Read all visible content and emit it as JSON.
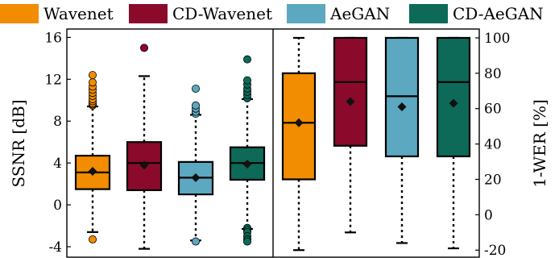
{
  "chart_data": {
    "type": "box",
    "legend": [
      {
        "name": "Wavenet",
        "color": "#F28C00"
      },
      {
        "name": "CD-Wavenet",
        "color": "#8B0A2C"
      },
      {
        "name": "AeGAN",
        "color": "#5BA8C0"
      },
      {
        "name": "CD-AeGAN",
        "color": "#0D6A58"
      }
    ],
    "legend_position": "top",
    "left_panel": {
      "ylabel": "SSNR [dB]",
      "ylim": [
        -5,
        16.8
      ],
      "yticks": [
        -4,
        0,
        4,
        8,
        12,
        16
      ],
      "boxes": [
        {
          "series": "Wavenet",
          "min": -2.6,
          "q1": 1.5,
          "median": 3.1,
          "q3": 4.7,
          "max": 9.4,
          "mean": 3.2,
          "outliers": [
            -3.3,
            9.5,
            9.6,
            9.7,
            9.9,
            10.1,
            10.4,
            10.7,
            11.0,
            11.3,
            11.7,
            12.4
          ]
        },
        {
          "series": "CD-Wavenet",
          "min": -4.2,
          "q1": 1.4,
          "median": 4.0,
          "q3": 6.0,
          "max": 12.3,
          "mean": 3.8,
          "outliers": [
            15.0
          ]
        },
        {
          "series": "AeGAN",
          "min": -3.4,
          "q1": 1.0,
          "median": 2.6,
          "q3": 4.1,
          "max": 8.6,
          "mean": 2.6,
          "outliers": [
            -3.5,
            8.7,
            8.9,
            9.2,
            9.5,
            11.1
          ]
        },
        {
          "series": "CD-AeGAN",
          "min": -2.3,
          "q1": 2.4,
          "median": 4.0,
          "q3": 5.5,
          "max": 10.1,
          "mean": 3.9,
          "outliers": [
            -2.2,
            -2.4,
            -2.6,
            -3.0,
            -3.3,
            -3.5,
            10.2,
            10.5,
            10.8,
            11.1,
            11.5,
            11.9,
            13.9
          ]
        }
      ]
    },
    "right_panel": {
      "ylabel": "1-WER [%]",
      "ylim": [
        -24,
        105
      ],
      "yticks": [
        -20,
        0,
        20,
        40,
        60,
        80,
        100
      ],
      "boxes": [
        {
          "series": "Wavenet",
          "min": -20,
          "q1": 20,
          "median": 52,
          "q3": 80,
          "max": 100,
          "mean": 52
        },
        {
          "series": "CD-Wavenet",
          "min": -10,
          "q1": 39,
          "median": 75,
          "q3": 100,
          "max": 100,
          "mean": 64
        },
        {
          "series": "AeGAN",
          "min": -16,
          "q1": 33,
          "median": 67,
          "q3": 100,
          "max": 100,
          "mean": 61
        },
        {
          "series": "CD-AeGAN",
          "min": -19,
          "q1": 33,
          "median": 75,
          "q3": 100,
          "max": 100,
          "mean": 63
        }
      ]
    }
  }
}
